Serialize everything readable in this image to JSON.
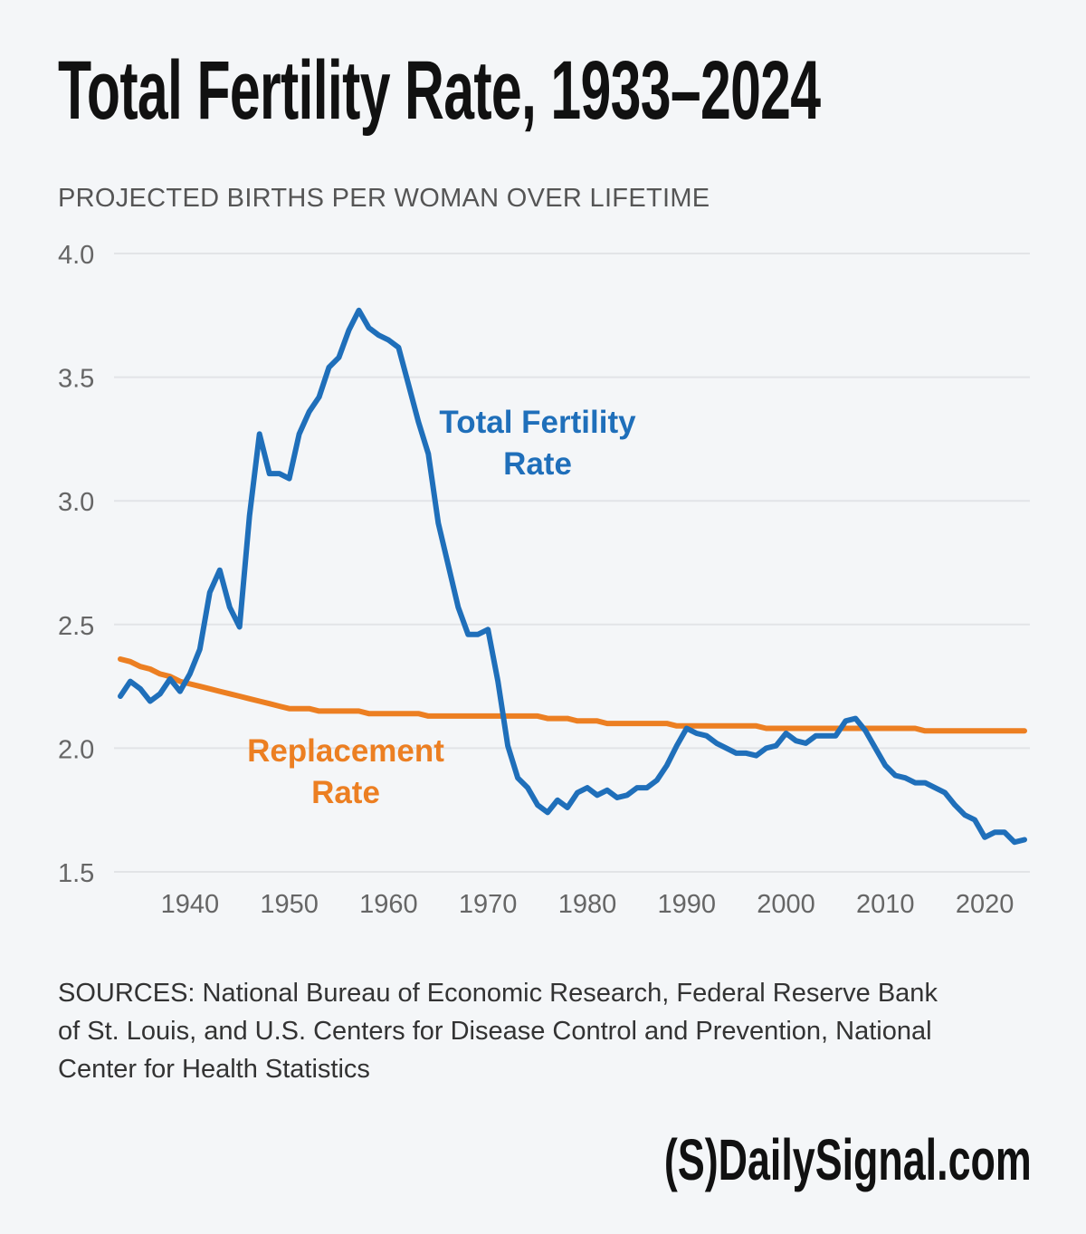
{
  "title": "Total Fertility Rate, 1933–2024",
  "subtitle": "PROJECTED BIRTHS PER WOMAN OVER LIFETIME",
  "sources": "SOURCES: National Bureau of Economic Research, Federal Reserve Bank of St. Louis, and U.S. Centers for Disease Control and Prevention, National Center for Health Statistics",
  "logo": "(S)DailySignal.com",
  "colors": {
    "tfr": "#1f6fba",
    "replacement": "#ec7f22",
    "grid": "#e2e4e7",
    "background": "#f4f6f8"
  },
  "chart_data": {
    "type": "line",
    "title": "Total Fertility Rate, 1933–2024",
    "ylabel": "PROJECTED BIRTHS PER WOMAN OVER LIFETIME",
    "xlabel": "",
    "xlim": [
      1933,
      2024
    ],
    "ylim": [
      1.5,
      4.0
    ],
    "yticks": [
      "1.5",
      "2.0",
      "2.5",
      "3.0",
      "3.5",
      "4.0"
    ],
    "xticks": [
      "1940",
      "1950",
      "1960",
      "1970",
      "1980",
      "1990",
      "2000",
      "2010",
      "2020"
    ],
    "grid": true,
    "legend": "inline labels",
    "x_start": 1933,
    "series": [
      {
        "name": "Total Fertility Rate",
        "label_lines": [
          "Total Fertility",
          "Rate"
        ],
        "color": "#1f6fba",
        "values": [
          2.21,
          2.27,
          2.24,
          2.19,
          2.22,
          2.28,
          2.23,
          2.3,
          2.4,
          2.63,
          2.72,
          2.57,
          2.49,
          2.94,
          3.27,
          3.11,
          3.11,
          3.09,
          3.27,
          3.36,
          3.42,
          3.54,
          3.58,
          3.69,
          3.77,
          3.7,
          3.67,
          3.65,
          3.62,
          3.47,
          3.32,
          3.19,
          2.91,
          2.74,
          2.57,
          2.46,
          2.46,
          2.48,
          2.27,
          2.01,
          1.88,
          1.84,
          1.77,
          1.74,
          1.79,
          1.76,
          1.82,
          1.84,
          1.81,
          1.83,
          1.8,
          1.81,
          1.84,
          1.84,
          1.87,
          1.93,
          2.01,
          2.08,
          2.06,
          2.05,
          2.02,
          2.0,
          1.98,
          1.98,
          1.97,
          2.0,
          2.01,
          2.06,
          2.03,
          2.02,
          2.05,
          2.05,
          2.05,
          2.11,
          2.12,
          2.07,
          2.0,
          1.93,
          1.89,
          1.88,
          1.86,
          1.86,
          1.84,
          1.82,
          1.77,
          1.73,
          1.71,
          1.64,
          1.66,
          1.66,
          1.62,
          1.63
        ]
      },
      {
        "name": "Replacement Rate",
        "label_lines": [
          "Replacement",
          "Rate"
        ],
        "color": "#ec7f22",
        "values": [
          2.36,
          2.35,
          2.33,
          2.32,
          2.3,
          2.29,
          2.27,
          2.26,
          2.25,
          2.24,
          2.23,
          2.22,
          2.21,
          2.2,
          2.19,
          2.18,
          2.17,
          2.16,
          2.16,
          2.16,
          2.15,
          2.15,
          2.15,
          2.15,
          2.15,
          2.14,
          2.14,
          2.14,
          2.14,
          2.14,
          2.14,
          2.13,
          2.13,
          2.13,
          2.13,
          2.13,
          2.13,
          2.13,
          2.13,
          2.13,
          2.13,
          2.13,
          2.13,
          2.12,
          2.12,
          2.12,
          2.11,
          2.11,
          2.11,
          2.1,
          2.1,
          2.1,
          2.1,
          2.1,
          2.1,
          2.1,
          2.09,
          2.09,
          2.09,
          2.09,
          2.09,
          2.09,
          2.09,
          2.09,
          2.09,
          2.08,
          2.08,
          2.08,
          2.08,
          2.08,
          2.08,
          2.08,
          2.08,
          2.08,
          2.08,
          2.08,
          2.08,
          2.08,
          2.08,
          2.08,
          2.08,
          2.07,
          2.07,
          2.07,
          2.07,
          2.07,
          2.07,
          2.07,
          2.07,
          2.07,
          2.07,
          2.07
        ]
      }
    ]
  }
}
